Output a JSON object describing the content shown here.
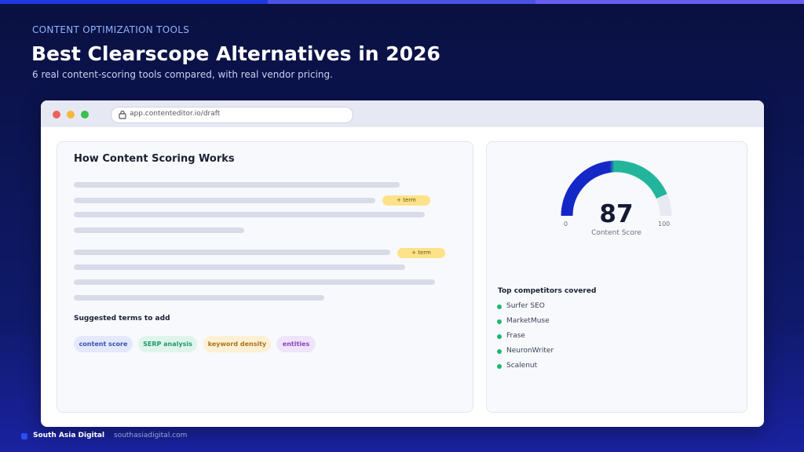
{
  "header": {
    "kicker": "CONTENT OPTIMIZATION TOOLS",
    "title": "Best Clearscope Alternatives in 2026",
    "subtitle": "6 real content-scoring tools compared, with real vendor pricing."
  },
  "browser": {
    "url": "app.contenteditor.io/draft"
  },
  "left_panel": {
    "title": "How Content Scoring Works",
    "term_badges": [
      "+ term",
      "+ term"
    ],
    "suggested_heading": "Suggested terms to add",
    "chips": [
      "content score",
      "SERP analysis",
      "keyword density",
      "entities"
    ]
  },
  "right_panel": {
    "gauge": {
      "value": 87,
      "min": 0,
      "max": 100,
      "label": "Content Score"
    },
    "competitors_heading": "Top competitors covered",
    "competitors": [
      "Surfer SEO",
      "MarketMuse",
      "Frase",
      "NeuronWriter",
      "Scalenut"
    ]
  },
  "footer": {
    "brand": "South Asia Digital",
    "domain": "southasiadigital.com"
  }
}
